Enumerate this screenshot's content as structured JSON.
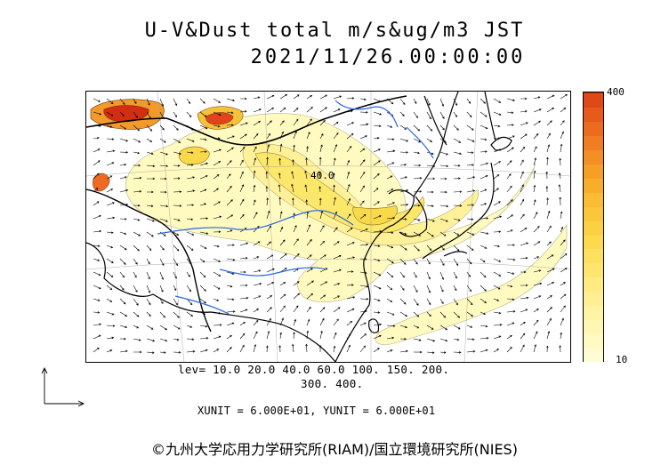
{
  "header": {
    "title_line1": "U-V&Dust total m/s&ug/m3 JST",
    "title_line2": "2021/11/26.00:00:00"
  },
  "map": {
    "contour_label": "40.0",
    "colors": {
      "coast": "#000000",
      "rivers": "#2a66e0",
      "level_10": "#fffac0",
      "level_20": "#fff199",
      "level_40": "#fbe76a",
      "level_60": "#f8d94a",
      "level_100": "#f6c23a",
      "level_150": "#f39a2a",
      "level_200": "#ef6a20",
      "level_300": "#e2431a",
      "level_400": "#d42e12"
    }
  },
  "colorbar": {
    "max_label": "400",
    "min_label": "10",
    "colors": [
      "#fffbd2",
      "#fff9c4",
      "#fff6b4",
      "#fff3a4",
      "#ffef93",
      "#ffeb82",
      "#fee56f",
      "#fde05e",
      "#fcd94e",
      "#fbd043",
      "#fac73a",
      "#f9bc32",
      "#f7ae2b",
      "#f59f27",
      "#f38f24",
      "#f07d22",
      "#ec6c1f",
      "#e65a1c",
      "#df4817"
    ]
  },
  "legend": {
    "levels_line1": "lev=  10.0  20.0  40.0  60.0  100.  150.  200.",
    "levels_line2": "300.  400.",
    "units_text": "XUNIT = 6.000E+01, YUNIT = 6.000E+01"
  },
  "footer": {
    "copyright": "©九州大学応用力学研究所(RIAM)/国立環境研究所(NIES)"
  }
}
